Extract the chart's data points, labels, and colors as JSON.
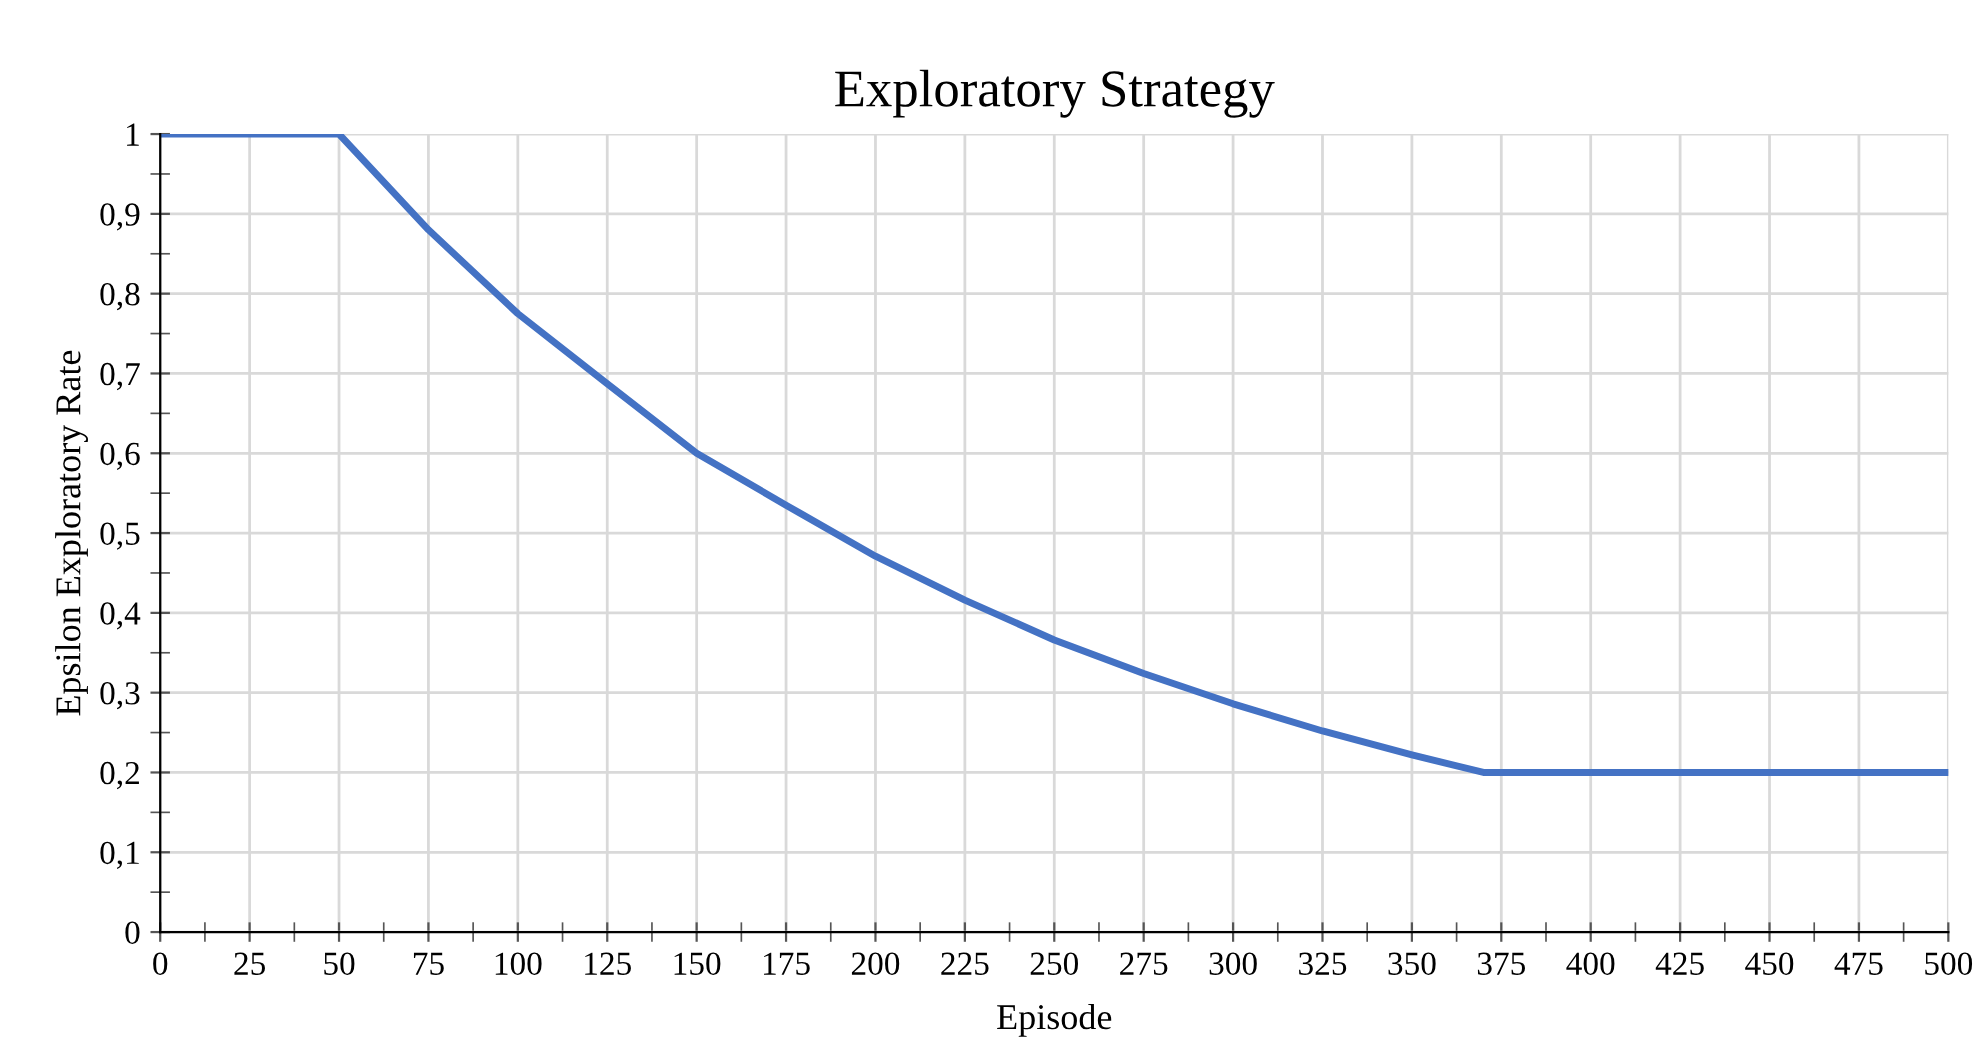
{
  "chart_data": {
    "type": "line",
    "title": "Exploratory Strategy",
    "xlabel": "Episode",
    "ylabel": "Epsilon Exploratory Rate",
    "x": [
      0,
      50,
      75,
      100,
      125,
      150,
      175,
      200,
      225,
      250,
      275,
      300,
      325,
      350,
      370,
      500
    ],
    "series": [
      {
        "color": "#4472c4",
        "values": [
          1,
          1,
          0.88,
          0.775,
          0.687,
          0.6,
          0.535,
          0.471,
          0.416,
          0.366,
          0.324,
          0.286,
          0.252,
          0.222,
          0.2,
          0.2
        ]
      }
    ],
    "xlim": [
      0,
      500
    ],
    "xticks": [
      0,
      25,
      50,
      75,
      100,
      125,
      150,
      175,
      200,
      225,
      250,
      275,
      300,
      325,
      350,
      375,
      400,
      425,
      450,
      475,
      500
    ],
    "ylim": [
      0,
      1
    ],
    "yticks": [
      0,
      {
        "value": 0.1,
        "label": "0,1"
      },
      {
        "value": 0.2,
        "label": "0,2"
      },
      {
        "value": 0.3,
        "label": "0,3"
      },
      {
        "value": 0.4,
        "label": "0,4"
      },
      {
        "value": 0.5,
        "label": "0,5"
      },
      {
        "value": 0.6,
        "label": "0,6"
      },
      {
        "value": 0.7,
        "label": "0,7"
      },
      {
        "value": 0.8,
        "label": "0,8"
      },
      {
        "value": 0.9,
        "label": "0,9"
      },
      1
    ],
    "grid": true,
    "marker": "none",
    "line_style": "solid"
  }
}
